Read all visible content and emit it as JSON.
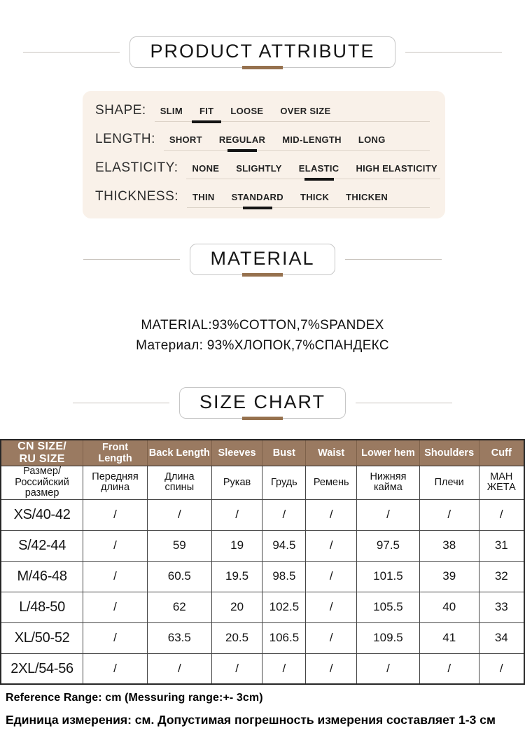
{
  "sections": {
    "product_attribute_title": "PRODUCT ATTRIBUTE",
    "material_title": "MATERIAL",
    "size_chart_title": "SIZE CHART"
  },
  "attributes": [
    {
      "label": "SHAPE:",
      "options": [
        "SLIM",
        "FIT",
        "LOOSE",
        "OVER SIZE"
      ],
      "selected": 1
    },
    {
      "label": "LENGTH:",
      "options": [
        "SHORT",
        "REGULAR",
        "MID-LENGTH",
        "LONG"
      ],
      "selected": 1
    },
    {
      "label": "ELASTICITY:",
      "options": [
        "NONE",
        "SLIGHTLY",
        "ELASTIC",
        "HIGH ELASTICITY"
      ],
      "selected": 2
    },
    {
      "label": "THICKNESS:",
      "options": [
        "THIN",
        "STANDARD",
        "THICK",
        "THICKEN"
      ],
      "selected": 1
    }
  ],
  "material": {
    "line_en": "MATERIAL:93%COTTON,7%SPANDEX",
    "line_ru": "Материал: 93%ХЛОПОК,7%СПАНДЕКС"
  },
  "size_table": {
    "header_en": [
      "CN SIZE/\nRU SIZE",
      "Front Length",
      "Back Length",
      "Sleeves",
      "Bust",
      "Waist",
      "Lower hem",
      "Shoulders",
      "Cuff"
    ],
    "header_ru": [
      "Размер/\nРоссийский\nразмер",
      "Передняя\nдлина",
      "Длина\nспины",
      "Рукав",
      "Грудь",
      "Ремень",
      "Нижняя\nкайма",
      "Плечи",
      "МАН\nЖЕТА"
    ],
    "rows": [
      {
        "size": "XS/40-42",
        "values": [
          "/",
          "/",
          "/",
          "/",
          "/",
          "/",
          "/",
          "/"
        ]
      },
      {
        "size": "S/42-44",
        "values": [
          "/",
          "59",
          "19",
          "94.5",
          "/",
          "97.5",
          "38",
          "31"
        ]
      },
      {
        "size": "M/46-48",
        "values": [
          "/",
          "60.5",
          "19.5",
          "98.5",
          "/",
          "101.5",
          "39",
          "32"
        ]
      },
      {
        "size": "L/48-50",
        "values": [
          "/",
          "62",
          "20",
          "102.5",
          "/",
          "105.5",
          "40",
          "33"
        ]
      },
      {
        "size": "XL/50-52",
        "values": [
          "/",
          "63.5",
          "20.5",
          "106.5",
          "/",
          "109.5",
          "41",
          "34"
        ]
      },
      {
        "size": "2XL/54-56",
        "values": [
          "/",
          "/",
          "/",
          "/",
          "/",
          "/",
          "/",
          "/"
        ]
      }
    ]
  },
  "footer": {
    "reference_en": "Reference Range: cm (Messuring range:+- 3cm)",
    "reference_ru": "Единица измерения: см. Допустимая погрешность измерения составляет 1-3 см"
  },
  "colors": {
    "accent_brown": "#96714e",
    "table_header_bg": "#9a7a61",
    "panel_bg": "#f9f1e9"
  }
}
